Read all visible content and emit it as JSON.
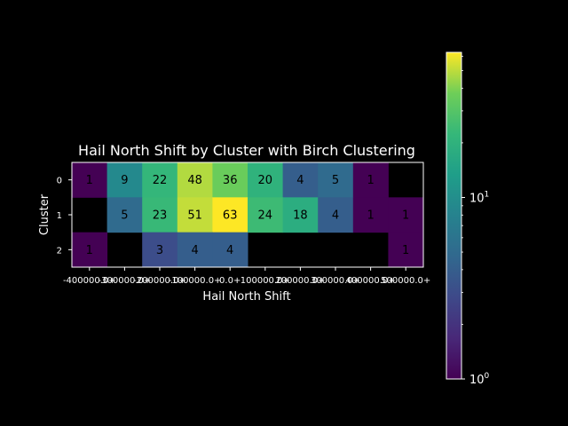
{
  "chart_data": {
    "type": "heatmap",
    "title": "Hail North Shift by Cluster with Birch Clustering",
    "xlabel": "Hail North Shift",
    "ylabel": "Cluster",
    "x_categories": [
      "-400000.0+",
      "-300000.0+",
      "-200000.0+",
      "-100000.0+",
      "0.0+",
      "100000.0+",
      "200000.0+",
      "300000.0+",
      "400000.0+",
      "500000.0+"
    ],
    "y_categories": [
      "0",
      "1",
      "2"
    ],
    "values": [
      [
        1,
        9,
        22,
        48,
        36,
        20,
        4,
        5,
        1,
        null
      ],
      [
        null,
        5,
        23,
        51,
        63,
        24,
        18,
        4,
        1,
        1
      ],
      [
        1,
        null,
        3,
        4,
        4,
        null,
        null,
        null,
        null,
        1
      ]
    ],
    "colorscale": "viridis",
    "color_scale_type": "log",
    "colorbar_range": [
      1,
      63
    ],
    "colorbar_ticks": [
      "10^0",
      "10^1"
    ],
    "background": "#000000",
    "text_color": "#ffffff",
    "annotation_color": "#000000"
  }
}
